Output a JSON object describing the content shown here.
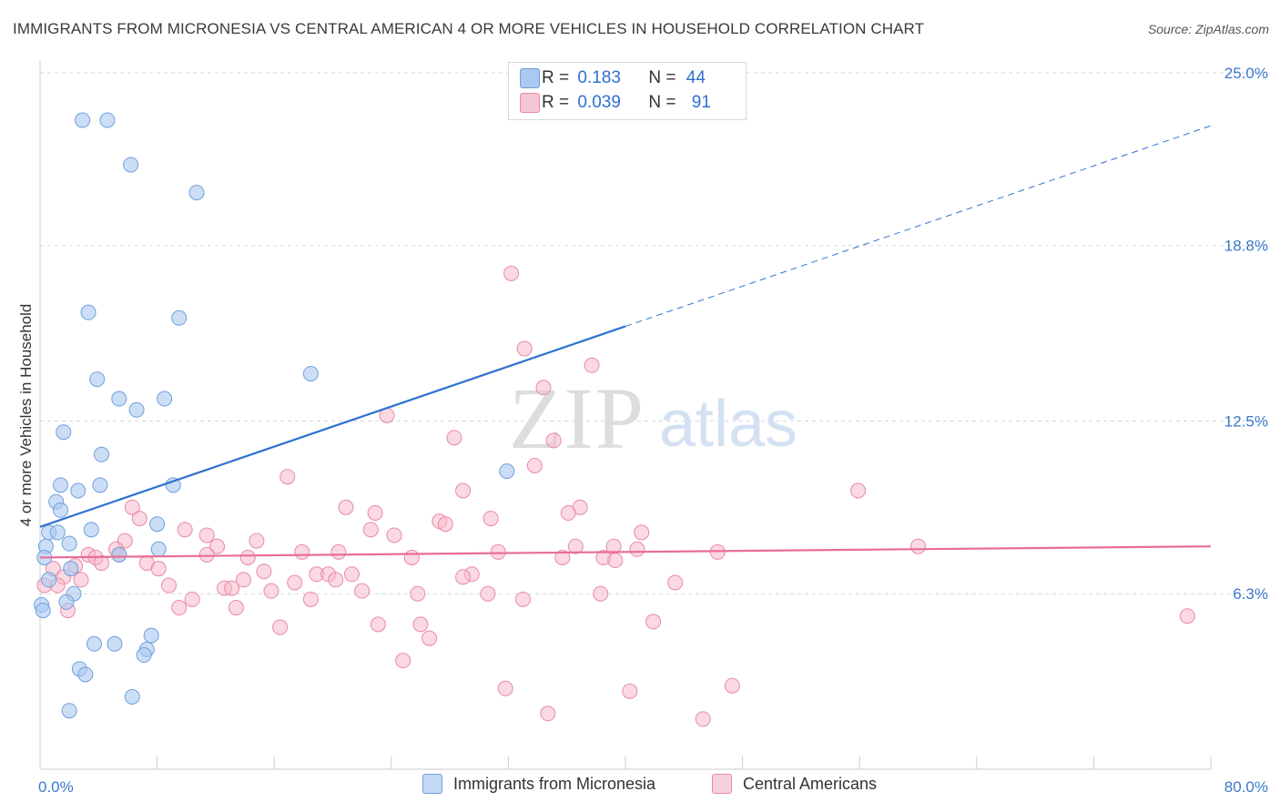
{
  "title": "IMMIGRANTS FROM MICRONESIA VS CENTRAL AMERICAN 4 OR MORE VEHICLES IN HOUSEHOLD CORRELATION CHART",
  "source": "Source: ZipAtlas.com",
  "colors": {
    "blue_fill": "#aac8f0",
    "blue_stroke": "#6f9fdc",
    "blue_line": "#2f72d0",
    "pink_fill": "#f5b9cb",
    "pink_stroke": "#e98aa7",
    "pink_line": "#e86d96",
    "axis_label": "#3a78cc",
    "grid": "#d8d8d8"
  },
  "legend_top": {
    "rows": [
      {
        "r_label": "R = ",
        "r_value": "0.183",
        "n_label": "N = ",
        "n_value": "44"
      },
      {
        "r_label": "R = ",
        "r_value": "0.039",
        "n_label": "N = ",
        "n_value": "91"
      }
    ]
  },
  "legend_bottom": {
    "series1": "Immigrants from Micronesia",
    "series2": "Central Americans"
  },
  "watermark": {
    "zip": "ZIP",
    "atlas": "atlas"
  },
  "chart_data": {
    "type": "scatter",
    "ylabel": "4 or more Vehicles in Household",
    "xlabel": "",
    "xlim": [
      0,
      80
    ],
    "ylim": [
      0,
      25.0
    ],
    "x_tick_labels": [
      "0.0%",
      "80.0%"
    ],
    "y_tick_labels": [
      "6.3%",
      "12.5%",
      "18.8%",
      "25.0%"
    ],
    "y_ticks": [
      6.3,
      12.5,
      18.8,
      25.0
    ],
    "series": [
      {
        "name": "Immigrants from Micronesia",
        "R": 0.183,
        "N": 44,
        "trend": {
          "x": [
            0,
            40
          ],
          "y": [
            8.7,
            15.9
          ],
          "dashed_extension_to": [
            80,
            23.1
          ]
        },
        "points": [
          [
            2.9,
            23.3
          ],
          [
            4.6,
            23.3
          ],
          [
            6.2,
            21.7
          ],
          [
            10.7,
            20.7
          ],
          [
            3.3,
            16.4
          ],
          [
            9.5,
            16.2
          ],
          [
            18.5,
            14.2
          ],
          [
            3.9,
            14.0
          ],
          [
            5.4,
            13.3
          ],
          [
            8.5,
            13.3
          ],
          [
            6.6,
            12.9
          ],
          [
            1.6,
            12.1
          ],
          [
            4.2,
            11.3
          ],
          [
            31.9,
            10.7
          ],
          [
            1.4,
            10.2
          ],
          [
            2.6,
            10.0
          ],
          [
            4.1,
            10.2
          ],
          [
            9.1,
            10.2
          ],
          [
            1.1,
            9.6
          ],
          [
            1.4,
            9.3
          ],
          [
            8.0,
            8.8
          ],
          [
            0.6,
            8.5
          ],
          [
            1.2,
            8.5
          ],
          [
            3.5,
            8.6
          ],
          [
            0.4,
            8.0
          ],
          [
            2.0,
            8.1
          ],
          [
            8.1,
            7.9
          ],
          [
            5.4,
            7.7
          ],
          [
            0.3,
            7.6
          ],
          [
            2.1,
            7.2
          ],
          [
            0.6,
            6.8
          ],
          [
            2.3,
            6.3
          ],
          [
            0.1,
            5.9
          ],
          [
            1.8,
            6.0
          ],
          [
            3.7,
            4.5
          ],
          [
            5.1,
            4.5
          ],
          [
            7.6,
            4.8
          ],
          [
            7.3,
            4.3
          ],
          [
            7.1,
            4.1
          ],
          [
            2.7,
            3.6
          ],
          [
            3.1,
            3.4
          ],
          [
            6.3,
            2.6
          ],
          [
            2.0,
            2.1
          ],
          [
            0.2,
            5.7
          ]
        ]
      },
      {
        "name": "Central Americans",
        "R": 0.039,
        "N": 91,
        "trend": {
          "x": [
            0,
            80
          ],
          "y": [
            7.6,
            8.0
          ]
        },
        "points": [
          [
            32.2,
            17.8
          ],
          [
            33.1,
            15.1
          ],
          [
            37.7,
            14.5
          ],
          [
            34.4,
            13.7
          ],
          [
            23.7,
            12.7
          ],
          [
            35.1,
            11.8
          ],
          [
            28.3,
            11.9
          ],
          [
            33.8,
            10.9
          ],
          [
            16.9,
            10.5
          ],
          [
            28.9,
            10.0
          ],
          [
            55.9,
            10.0
          ],
          [
            6.3,
            9.4
          ],
          [
            20.9,
            9.4
          ],
          [
            36.9,
            9.4
          ],
          [
            22.9,
            9.2
          ],
          [
            36.1,
            9.2
          ],
          [
            6.8,
            9.0
          ],
          [
            30.8,
            9.0
          ],
          [
            27.3,
            8.9
          ],
          [
            27.7,
            8.8
          ],
          [
            9.9,
            8.6
          ],
          [
            22.6,
            8.6
          ],
          [
            11.4,
            8.4
          ],
          [
            24.2,
            8.4
          ],
          [
            5.8,
            8.2
          ],
          [
            14.8,
            8.2
          ],
          [
            41.1,
            8.5
          ],
          [
            36.6,
            8.0
          ],
          [
            39.2,
            8.0
          ],
          [
            60.0,
            8.0
          ],
          [
            12.1,
            8.0
          ],
          [
            5.2,
            7.9
          ],
          [
            40.8,
            7.9
          ],
          [
            17.9,
            7.8
          ],
          [
            20.4,
            7.8
          ],
          [
            31.3,
            7.8
          ],
          [
            46.3,
            7.8
          ],
          [
            3.3,
            7.7
          ],
          [
            3.8,
            7.6
          ],
          [
            5.4,
            7.7
          ],
          [
            11.4,
            7.7
          ],
          [
            14.2,
            7.6
          ],
          [
            25.4,
            7.6
          ],
          [
            35.7,
            7.6
          ],
          [
            38.5,
            7.6
          ],
          [
            39.3,
            7.5
          ],
          [
            4.2,
            7.4
          ],
          [
            7.3,
            7.4
          ],
          [
            2.4,
            7.3
          ],
          [
            0.9,
            7.2
          ],
          [
            8.1,
            7.2
          ],
          [
            15.3,
            7.1
          ],
          [
            18.9,
            7.0
          ],
          [
            19.7,
            7.0
          ],
          [
            21.3,
            7.0
          ],
          [
            29.5,
            7.0
          ],
          [
            1.6,
            6.9
          ],
          [
            28.9,
            6.9
          ],
          [
            2.8,
            6.8
          ],
          [
            13.9,
            6.8
          ],
          [
            17.4,
            6.7
          ],
          [
            20.2,
            6.8
          ],
          [
            43.4,
            6.7
          ],
          [
            0.3,
            6.6
          ],
          [
            1.2,
            6.6
          ],
          [
            8.8,
            6.6
          ],
          [
            12.6,
            6.5
          ],
          [
            13.1,
            6.5
          ],
          [
            15.8,
            6.4
          ],
          [
            22.0,
            6.4
          ],
          [
            25.8,
            6.3
          ],
          [
            30.6,
            6.3
          ],
          [
            38.3,
            6.3
          ],
          [
            10.4,
            6.1
          ],
          [
            18.5,
            6.1
          ],
          [
            33.0,
            6.1
          ],
          [
            9.5,
            5.8
          ],
          [
            13.4,
            5.8
          ],
          [
            1.9,
            5.7
          ],
          [
            78.4,
            5.5
          ],
          [
            41.9,
            5.3
          ],
          [
            23.1,
            5.2
          ],
          [
            26.0,
            5.2
          ],
          [
            16.4,
            5.1
          ],
          [
            26.6,
            4.7
          ],
          [
            24.8,
            3.9
          ],
          [
            47.3,
            3.0
          ],
          [
            31.8,
            2.9
          ],
          [
            40.3,
            2.8
          ],
          [
            34.7,
            2.0
          ],
          [
            45.3,
            1.8
          ]
        ]
      }
    ]
  }
}
